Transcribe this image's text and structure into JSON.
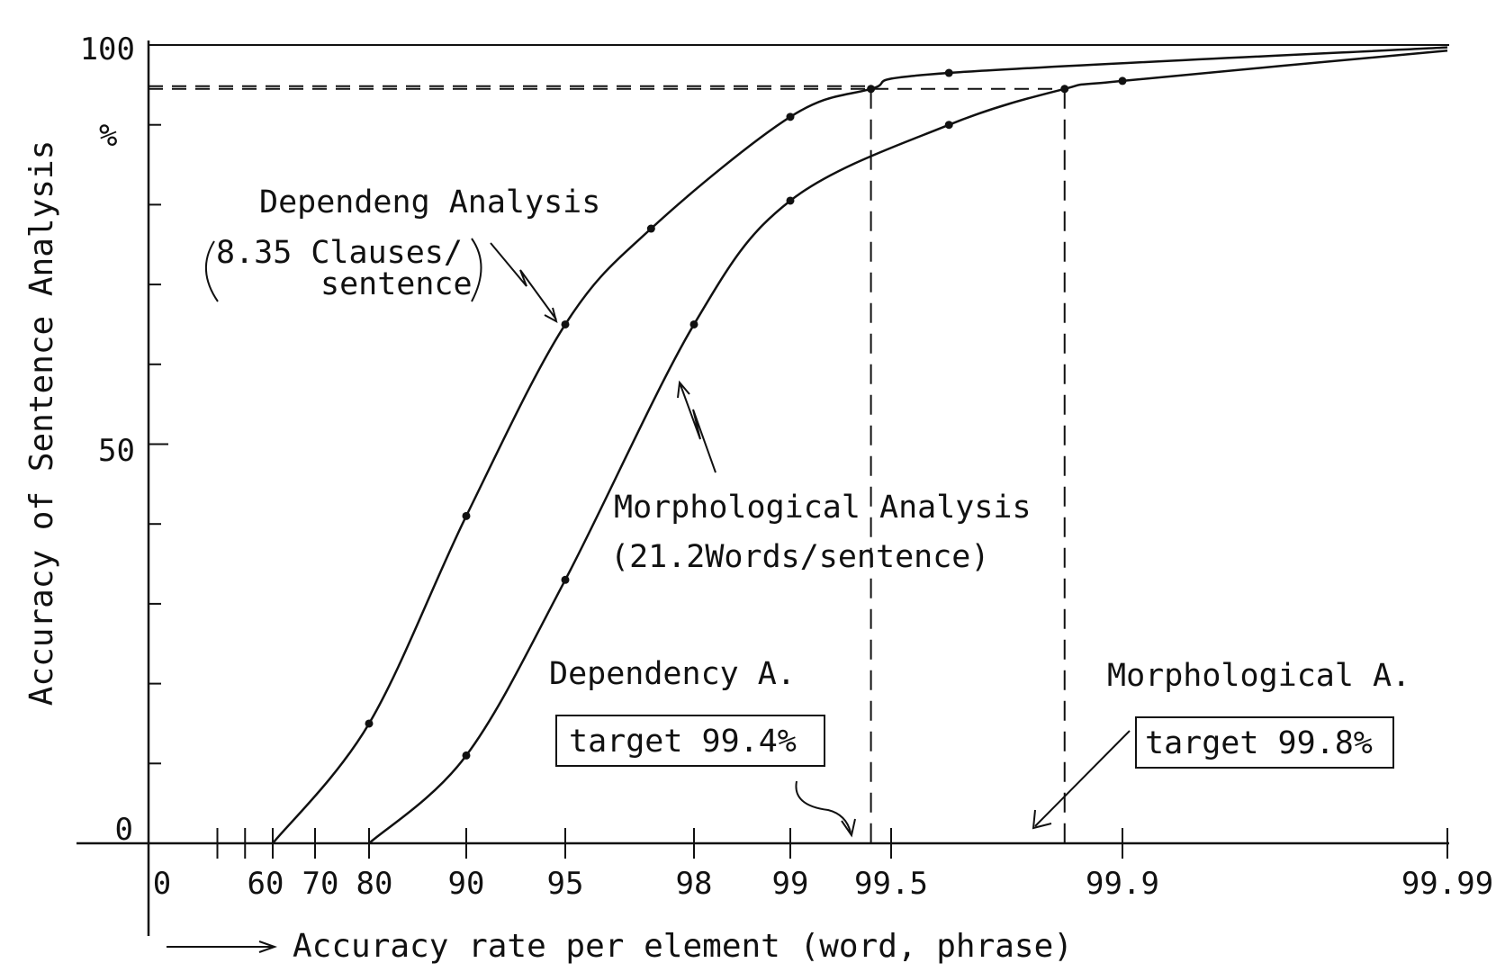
{
  "chart_data": {
    "type": "line",
    "xlabel": "Accuracy rate per element (word, phrase)",
    "ylabel": "Accuracy of Sentence Analysis",
    "y_unit": "%",
    "ylim": [
      0,
      100
    ],
    "yticks": [
      {
        "value": 0,
        "label": "0"
      },
      {
        "value": 50,
        "label": "50"
      },
      {
        "value": 100,
        "label": "100"
      }
    ],
    "xticks": [
      {
        "value": 0,
        "label": "0"
      },
      {
        "value": 60,
        "label": "60"
      },
      {
        "value": 70,
        "label": "70"
      },
      {
        "value": 80,
        "label": "80"
      },
      {
        "value": 90,
        "label": "90"
      },
      {
        "value": 95,
        "label": "95"
      },
      {
        "value": 98,
        "label": "98"
      },
      {
        "value": 99,
        "label": "99"
      },
      {
        "value": 99.5,
        "label": "99.5"
      },
      {
        "value": 99.9,
        "label": "99.9"
      },
      {
        "value": 99.99,
        "label": "99.99"
      }
    ],
    "series": [
      {
        "name": "Dependeng Analysis",
        "x": [
          60,
          80,
          90,
          95,
          97,
          99,
          99.4,
          99.6,
          99.99
        ],
        "y": [
          0,
          15,
          41,
          65,
          77,
          91,
          94.5,
          96.5,
          99.7
        ]
      },
      {
        "name": "Morphological Analysis",
        "x": [
          80,
          90,
          95,
          98,
          99,
          99.6,
          99.8,
          99.9,
          99.99
        ],
        "y": [
          0,
          11,
          33,
          65,
          80.5,
          90,
          94.5,
          95.5,
          99.3
        ]
      }
    ],
    "target_lines": [
      {
        "x": 99.4,
        "y": 94.5,
        "label": "target 99.4%",
        "caption": "Dependency A."
      },
      {
        "x": 99.8,
        "y": 94.5,
        "label": "target 99.8%",
        "caption": "Morphological A."
      }
    ],
    "annotations": {
      "dependency_title": "Dependeng Analysis",
      "dependency_sub1": "8.35 Clauses/",
      "dependency_sub2": "sentence",
      "morph_title": "Morphological Analysis",
      "morph_sub": "(21.2Words/sentence)"
    },
    "grid": false,
    "legend": "none"
  }
}
